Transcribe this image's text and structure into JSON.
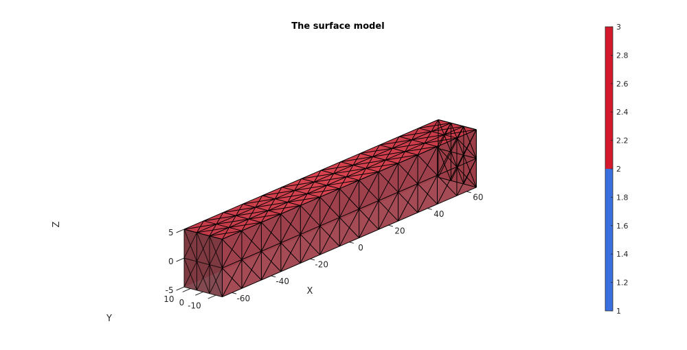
{
  "chart_data": {
    "type": "3d-surface-mesh",
    "title": "The surface model",
    "xlabel": "X",
    "ylabel": "Y",
    "zlabel": "Z",
    "x_ticks": [
      "-60",
      "-40",
      "-20",
      "0",
      "20",
      "40",
      "60"
    ],
    "y_ticks": [
      "-10",
      "0",
      "10"
    ],
    "z_ticks": [
      "-5",
      "0",
      "5"
    ],
    "xlim": [
      -65,
      65
    ],
    "ylim": [
      -15,
      15
    ],
    "zlim": [
      -5,
      5
    ],
    "box": {
      "x": [
        -65,
        65
      ],
      "y": [
        -15,
        15
      ],
      "z": [
        -5,
        5
      ]
    },
    "mesh": {
      "nx": 13,
      "ny": 3,
      "nz": 2,
      "elements": "tetrahedral"
    },
    "face_color": "#c83442",
    "edge_color": "#000000",
    "colorbar": {
      "limits": [
        1,
        3
      ],
      "ticks": [
        "1",
        "1.2",
        "1.4",
        "1.6",
        "1.8",
        "2",
        "2.2",
        "2.4",
        "2.6",
        "2.8",
        "3"
      ],
      "segments": [
        {
          "from": 1,
          "to": 2,
          "color": "#3a6fe0"
        },
        {
          "from": 2,
          "to": 3,
          "color": "#d3192b"
        }
      ]
    }
  }
}
